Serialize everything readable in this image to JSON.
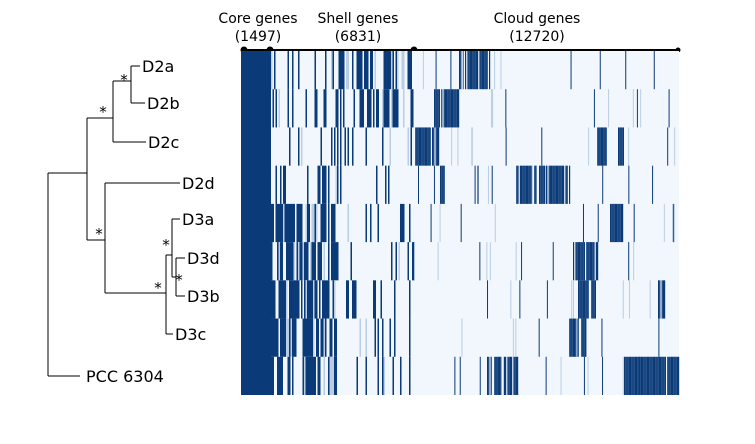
{
  "header": {
    "core": {
      "name": "Core genes",
      "count": "(1497)"
    },
    "shell": {
      "name": "Shell genes",
      "count": "(6831)"
    },
    "cloud": {
      "name": "Cloud genes",
      "count": "(12720)"
    }
  },
  "tree": {
    "leaves": [
      "D2a",
      "D2b",
      "D2c",
      "D2d",
      "D3a",
      "D3d",
      "D3b",
      "D3c",
      "PCC 6304"
    ],
    "support_marker": "*"
  },
  "colors": {
    "present": "#0b3a78",
    "absent": "#f2f7fd",
    "sparse": "#b9cde4"
  }
}
